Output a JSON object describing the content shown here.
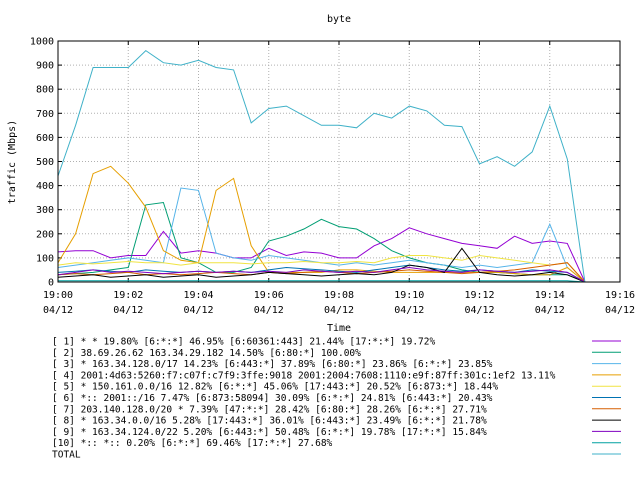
{
  "chart_data": {
    "type": "line",
    "title": "byte",
    "xlabel": "Time",
    "ylabel": "traffic (Mbps)",
    "ylim": [
      0,
      1000
    ],
    "y_ticks": [
      "0",
      "100",
      "200",
      "300",
      "400",
      "500",
      "600",
      "700",
      "800",
      "900",
      "1000"
    ],
    "x_ticks": [
      {
        "time": "19:00",
        "date": "04/12"
      },
      {
        "time": "19:02",
        "date": "04/12"
      },
      {
        "time": "19:04",
        "date": "04/12"
      },
      {
        "time": "19:06",
        "date": "04/12"
      },
      {
        "time": "19:08",
        "date": "04/12"
      },
      {
        "time": "19:10",
        "date": "04/12"
      },
      {
        "time": "19:12",
        "date": "04/12"
      },
      {
        "time": "19:14",
        "date": "04/12"
      },
      {
        "time": "19:16",
        "date": "04/12"
      }
    ],
    "x_minutes_range": [
      0,
      16
    ],
    "grid": true,
    "legend_position": "bottom",
    "series": [
      {
        "name": "[ 1] * * 19.80%  [6:*:*] 46.95% [6:60361:443] 21.44% [17:*:*] 19.72%",
        "color": "#9400d3",
        "x": [
          0,
          0.5,
          1,
          1.5,
          2,
          2.5,
          3,
          3.5,
          4,
          4.5,
          5,
          5.5,
          6,
          6.5,
          7,
          7.5,
          8,
          8.5,
          9,
          9.5,
          10,
          10.5,
          11,
          11.5,
          12,
          12.5,
          13,
          13.5,
          14,
          14.5,
          15
        ],
        "y": [
          125,
          130,
          130,
          100,
          110,
          110,
          210,
          120,
          130,
          120,
          100,
          100,
          140,
          110,
          125,
          120,
          100,
          100,
          150,
          180,
          225,
          200,
          180,
          160,
          150,
          140,
          190,
          160,
          170,
          160,
          0
        ]
      },
      {
        "name": "[ 2] 38.69.26.62 163.34.29.182 14.50%  [6:80:*] 100.00%",
        "color": "#009e73",
        "x": [
          0,
          0.5,
          1,
          1.5,
          2,
          2.5,
          3,
          3.5,
          4,
          4.5,
          5,
          5.5,
          6,
          6.5,
          7,
          7.5,
          8,
          8.5,
          9,
          9.5,
          10,
          10.5,
          11,
          11.5,
          12,
          12.5,
          13,
          13.5,
          14,
          14.5,
          15
        ],
        "y": [
          30,
          35,
          40,
          50,
          60,
          320,
          330,
          100,
          80,
          40,
          40,
          60,
          170,
          190,
          220,
          260,
          230,
          220,
          180,
          130,
          100,
          80,
          70,
          50,
          40,
          40,
          35,
          30,
          30,
          30,
          0
        ]
      },
      {
        "name": "[ 3] * 163.34.128.0/17 14.23%  [6:443:*] 37.89% [6:80:*] 23.86% [6:*:*] 23.85%",
        "color": "#56b4e9",
        "x": [
          0,
          0.5,
          1,
          1.5,
          2,
          2.5,
          3,
          3.5,
          4,
          4.5,
          5,
          5.5,
          6,
          6.5,
          7,
          7.5,
          8,
          8.5,
          9,
          9.5,
          10,
          10.5,
          11,
          11.5,
          12,
          12.5,
          13,
          13.5,
          14,
          14.5,
          15
        ],
        "y": [
          60,
          70,
          80,
          90,
          100,
          90,
          80,
          390,
          380,
          120,
          100,
          90,
          110,
          100,
          90,
          80,
          70,
          80,
          70,
          80,
          90,
          80,
          70,
          60,
          70,
          60,
          70,
          80,
          240,
          60,
          0
        ]
      },
      {
        "name": "[ 4] 2001:4d63:5260:f7:c07f:c7f9:3ffe:9018 2001:2004:7608:1110:e9f:87ff:301c:1ef2 13.11%",
        "color": "#e69f00",
        "x": [
          0,
          0.5,
          1,
          1.5,
          2,
          2.5,
          3,
          3.5,
          4,
          4.5,
          5,
          5.5,
          6,
          6.5,
          7,
          7.5,
          8,
          8.5,
          9,
          9.5,
          10,
          10.5,
          11,
          11.5,
          12,
          12.5,
          13,
          13.5,
          14,
          14.5,
          15
        ],
        "y": [
          80,
          200,
          450,
          480,
          410,
          310,
          130,
          90,
          80,
          380,
          430,
          150,
          40,
          40,
          40,
          40,
          50,
          50,
          45,
          40,
          40,
          40,
          40,
          40,
          40,
          40,
          35,
          30,
          30,
          60,
          0
        ]
      },
      {
        "name": "[ 5] * 150.161.0.0/16 12.82%  [6:*:*] 45.06% [17:443:*] 20.52% [6:873:*] 18.44%",
        "color": "#f0e442",
        "x": [
          0,
          0.5,
          1,
          1.5,
          2,
          2.5,
          3,
          3.5,
          4,
          4.5,
          5,
          5.5,
          6,
          6.5,
          7,
          7.5,
          8,
          8.5,
          9,
          9.5,
          10,
          10.5,
          11,
          11.5,
          12,
          12.5,
          13,
          13.5,
          14,
          14.5,
          15
        ],
        "y": [
          70,
          80,
          75,
          80,
          85,
          80,
          80,
          70,
          80,
          80,
          80,
          75,
          80,
          80,
          85,
          80,
          80,
          85,
          80,
          100,
          110,
          110,
          100,
          90,
          110,
          100,
          90,
          80,
          70,
          80,
          0
        ]
      },
      {
        "name": "[ 6] *:: 2001::/16 7.47%  [6:873:58094] 30.09% [6:*:*] 24.81% [6:443:*] 20.43%",
        "color": "#0072b2",
        "x": [
          0,
          0.5,
          1,
          1.5,
          2,
          2.5,
          3,
          3.5,
          4,
          4.5,
          5,
          5.5,
          6,
          6.5,
          7,
          7.5,
          8,
          8.5,
          9,
          9.5,
          10,
          10.5,
          11,
          11.5,
          12,
          12.5,
          13,
          13.5,
          14,
          14.5,
          15
        ],
        "y": [
          40,
          45,
          50,
          45,
          40,
          50,
          45,
          40,
          45,
          40,
          45,
          40,
          50,
          60,
          55,
          50,
          45,
          40,
          50,
          60,
          70,
          60,
          50,
          45,
          50,
          45,
          40,
          50,
          45,
          40,
          0
        ]
      },
      {
        "name": "[ 7] 203.140.128.0/20 * 7.39%  [47:*:*] 28.42% [6:80:*] 28.26% [6:*:*] 27.71%",
        "color": "#d55e00",
        "x": [
          0,
          0.5,
          1,
          1.5,
          2,
          2.5,
          3,
          3.5,
          4,
          4.5,
          5,
          5.5,
          6,
          6.5,
          7,
          7.5,
          8,
          8.5,
          9,
          9.5,
          10,
          10.5,
          11,
          11.5,
          12,
          12.5,
          13,
          13.5,
          14,
          14.5,
          15
        ],
        "y": [
          30,
          35,
          30,
          35,
          40,
          30,
          35,
          30,
          35,
          40,
          35,
          30,
          40,
          35,
          40,
          45,
          40,
          35,
          40,
          45,
          50,
          45,
          40,
          35,
          40,
          45,
          50,
          60,
          70,
          80,
          0
        ]
      },
      {
        "name": "[ 8] * 163.34.0.0/16 5.28%  [17:443:*] 36.01% [6:443:*] 23.49% [6:*:*] 21.78%",
        "color": "#000000",
        "x": [
          0,
          0.5,
          1,
          1.5,
          2,
          2.5,
          3,
          3.5,
          4,
          4.5,
          5,
          5.5,
          6,
          6.5,
          7,
          7.5,
          8,
          8.5,
          9,
          9.5,
          10,
          10.5,
          11,
          11.5,
          12,
          12.5,
          13,
          13.5,
          14,
          14.5,
          15
        ],
        "y": [
          20,
          25,
          30,
          20,
          25,
          30,
          20,
          25,
          30,
          20,
          25,
          30,
          40,
          35,
          30,
          25,
          30,
          35,
          30,
          40,
          70,
          60,
          40,
          140,
          40,
          30,
          25,
          30,
          40,
          30,
          0
        ]
      },
      {
        "name": "[ 9] * 163.34.124.0/22 5.20%  [6:443:*] 50.48% [6:*:*] 19.78% [17:*:*] 15.84%",
        "color": "#7f00bf",
        "x": [
          0,
          0.5,
          1,
          1.5,
          2,
          2.5,
          3,
          3.5,
          4,
          4.5,
          5,
          5.5,
          6,
          6.5,
          7,
          7.5,
          8,
          8.5,
          9,
          9.5,
          10,
          10.5,
          11,
          11.5,
          12,
          12.5,
          13,
          13.5,
          14,
          14.5,
          15
        ],
        "y": [
          30,
          40,
          50,
          40,
          45,
          40,
          35,
          40,
          45,
          40,
          45,
          40,
          45,
          40,
          50,
          45,
          40,
          45,
          40,
          50,
          60,
          50,
          45,
          40,
          50,
          45,
          40,
          45,
          50,
          40,
          0
        ]
      },
      {
        "name": "[10] *:: *:: 0.20%  [6:*:*] 69.46% [17:*:*] 27.68%",
        "color": "#00a0a0",
        "x": [
          0,
          0.5,
          1,
          1.5,
          2,
          2.5,
          3,
          3.5,
          4,
          4.5,
          5,
          5.5,
          6,
          6.5,
          7,
          7.5,
          8,
          8.5,
          9,
          9.5,
          10,
          10.5,
          11,
          11.5,
          12,
          12.5,
          13,
          13.5,
          14,
          14.5,
          15
        ],
        "y": [
          5,
          5,
          5,
          5,
          5,
          5,
          5,
          5,
          5,
          5,
          5,
          5,
          5,
          5,
          5,
          5,
          5,
          5,
          5,
          5,
          5,
          5,
          5,
          5,
          5,
          5,
          5,
          5,
          5,
          5,
          0
        ]
      },
      {
        "name": "TOTAL",
        "color": "#3fb1c8",
        "x": [
          0,
          0.5,
          1,
          1.5,
          2,
          2.5,
          3,
          3.5,
          4,
          4.5,
          5,
          5.5,
          6,
          6.5,
          7,
          7.5,
          8,
          8.5,
          9,
          9.5,
          10,
          10.5,
          11,
          11.5,
          12,
          12.5,
          13,
          13.5,
          14,
          14.5,
          15
        ],
        "y": [
          440,
          650,
          890,
          890,
          890,
          960,
          910,
          900,
          920,
          890,
          880,
          660,
          720,
          730,
          690,
          650,
          650,
          640,
          700,
          680,
          730,
          710,
          650,
          645,
          490,
          520,
          480,
          540,
          730,
          510,
          0
        ]
      }
    ]
  }
}
